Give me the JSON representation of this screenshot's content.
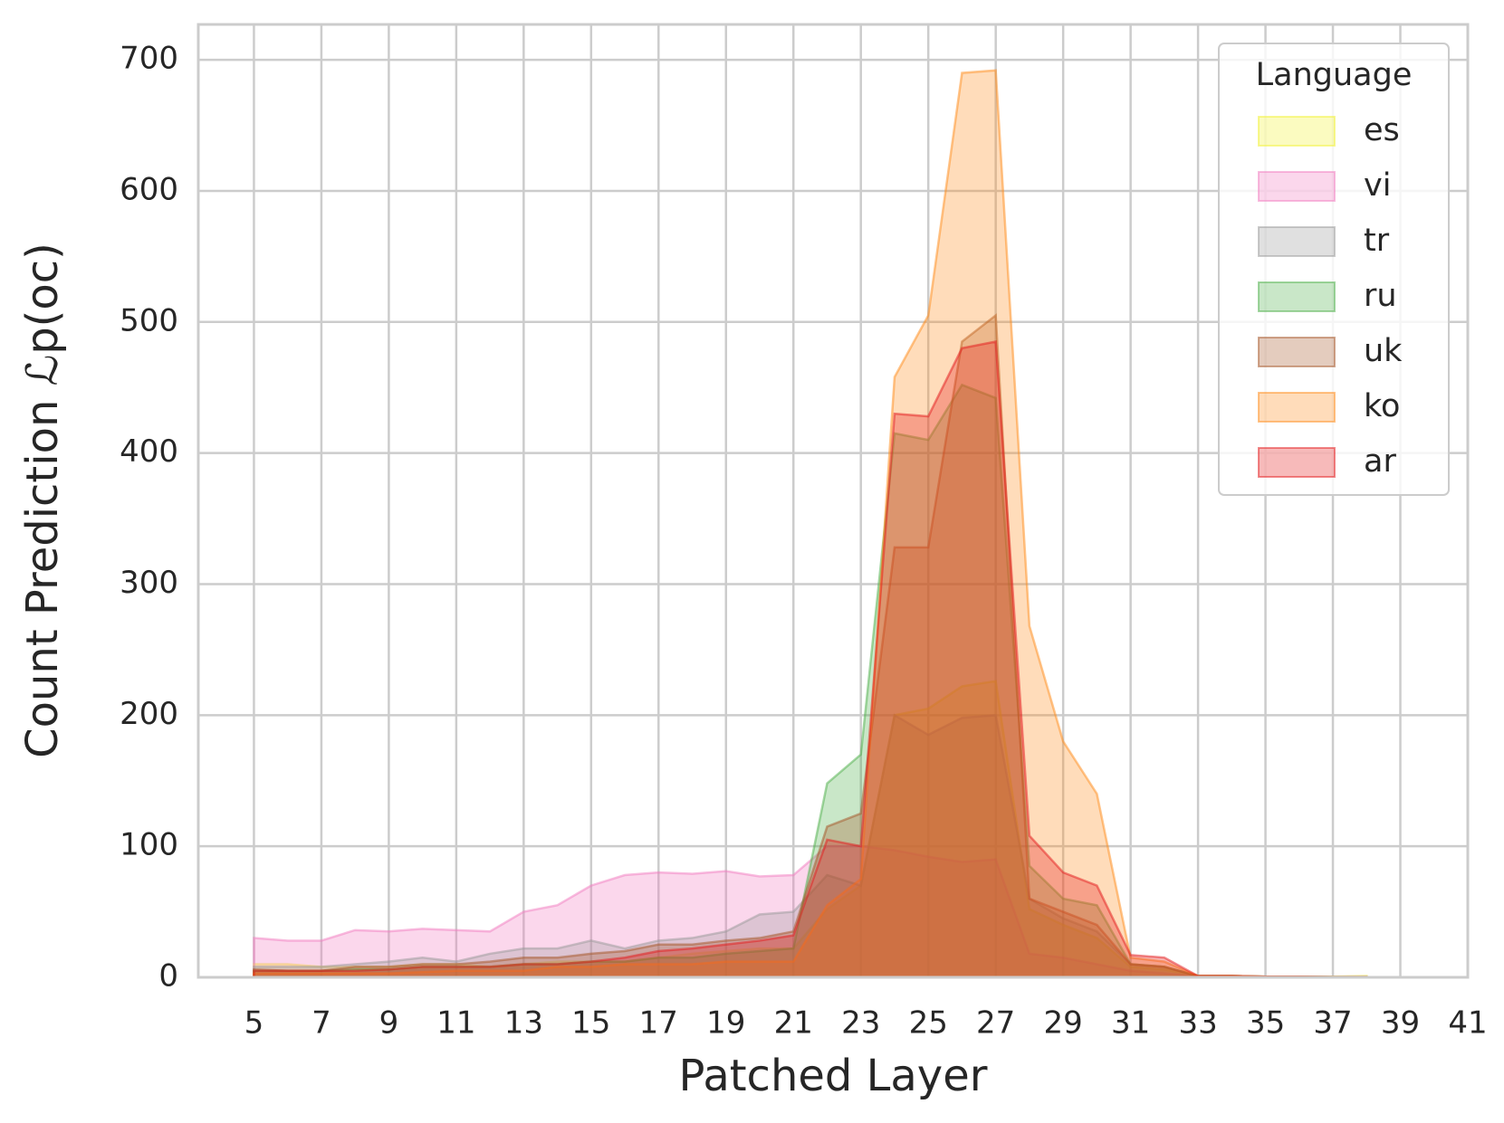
{
  "chart_data": {
    "type": "area",
    "x_label": "Patched Layer",
    "y_label": "Count Prediction ℒp(oc)",
    "legend_title": "Language",
    "legend_position": "upper right",
    "grid": true,
    "alpha": 0.3,
    "x": [
      5,
      6,
      7,
      8,
      9,
      10,
      11,
      12,
      13,
      14,
      15,
      16,
      17,
      18,
      19,
      20,
      21,
      22,
      23,
      24,
      25,
      26,
      27,
      28,
      29,
      30,
      31,
      32,
      33,
      34,
      35,
      36,
      37,
      38
    ],
    "xlim": [
      3.35,
      41
    ],
    "ylim": [
      0,
      727
    ],
    "xticks": [
      5,
      7,
      9,
      11,
      13,
      15,
      17,
      19,
      21,
      23,
      25,
      27,
      29,
      31,
      33,
      35,
      37,
      39,
      41
    ],
    "yticks": [
      0,
      100,
      200,
      300,
      400,
      500,
      600,
      700
    ],
    "series": [
      {
        "name": "es",
        "color": "#f2f230",
        "values": [
          10,
          10,
          8,
          8,
          8,
          10,
          10,
          8,
          10,
          12,
          12,
          12,
          15,
          18,
          20,
          22,
          22,
          52,
          70,
          200,
          205,
          222,
          226,
          52,
          40,
          30,
          8,
          6,
          1,
          1,
          0.5,
          0.5,
          0.5,
          1
        ]
      },
      {
        "name": "vi",
        "color": "#f27cbf",
        "values": [
          30,
          28,
          28,
          36,
          35,
          37,
          36,
          35,
          50,
          55,
          70,
          78,
          80,
          79,
          81,
          77,
          78,
          100,
          100,
          97,
          92,
          88,
          90,
          18,
          15,
          10,
          5,
          3,
          1,
          1,
          0.5,
          0.5,
          0.3,
          0.3
        ]
      },
      {
        "name": "tr",
        "color": "#999999",
        "values": [
          8,
          8,
          8,
          10,
          12,
          15,
          12,
          18,
          22,
          22,
          28,
          22,
          28,
          30,
          35,
          48,
          50,
          78,
          70,
          200,
          185,
          198,
          200,
          60,
          45,
          35,
          10,
          8,
          1,
          1,
          0.5,
          0.5,
          0.3,
          0.3
        ]
      },
      {
        "name": "ru",
        "color": "#4daf4a",
        "values": [
          5,
          5,
          5,
          6,
          6,
          8,
          8,
          8,
          10,
          10,
          12,
          12,
          15,
          15,
          18,
          20,
          22,
          148,
          170,
          415,
          410,
          452,
          442,
          85,
          60,
          55,
          10,
          8,
          1,
          1,
          0.5,
          0.5,
          0.3,
          0.3
        ]
      },
      {
        "name": "uk",
        "color": "#a65628",
        "values": [
          6,
          5,
          5,
          8,
          8,
          10,
          10,
          12,
          15,
          15,
          18,
          20,
          25,
          25,
          28,
          30,
          35,
          115,
          125,
          328,
          328,
          485,
          505,
          60,
          50,
          40,
          10,
          8,
          1,
          1,
          0.5,
          0.5,
          0.3,
          0.3
        ]
      },
      {
        "name": "ko",
        "color": "#ff8c1a",
        "values": [
          3,
          3,
          3,
          3,
          3,
          4,
          5,
          5,
          5,
          8,
          8,
          10,
          10,
          10,
          12,
          12,
          12,
          55,
          75,
          458,
          505,
          690,
          692,
          268,
          180,
          140,
          15,
          12,
          1,
          1,
          0.5,
          0.5,
          0.3,
          0.3
        ]
      },
      {
        "name": "ar",
        "color": "#e41a1c",
        "values": [
          5,
          5,
          5,
          5,
          6,
          8,
          8,
          8,
          10,
          10,
          12,
          15,
          20,
          22,
          25,
          28,
          32,
          105,
          100,
          430,
          428,
          480,
          485,
          108,
          80,
          70,
          17,
          15,
          1,
          1,
          0.5,
          0.5,
          0.3,
          0.3
        ]
      }
    ]
  }
}
